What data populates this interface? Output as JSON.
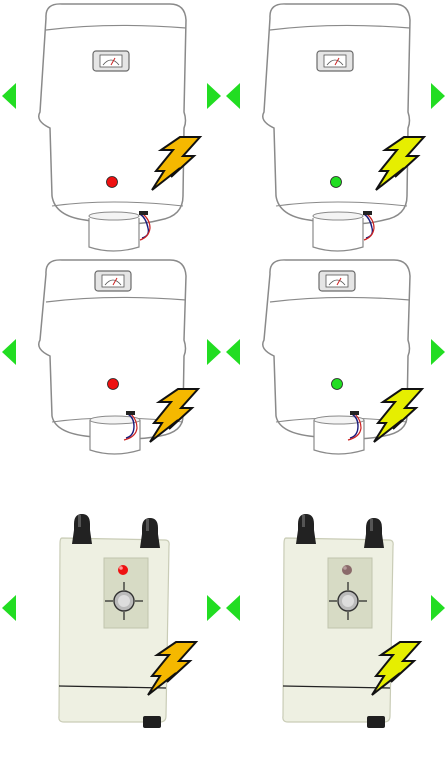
{
  "colors": {
    "background": "#ffffff",
    "arrow_green": "#22dd22",
    "indicator_off": "#ee1111",
    "indicator_on": "#22dd22",
    "bolt_orange": "#f5b800",
    "bolt_yellow": "#e6ee00",
    "heater_outline": "#8a8a8a",
    "device_body": "#eef0e2"
  },
  "sprites": [
    {
      "name": "boiler-1",
      "kind": "boiler",
      "indicator": "off",
      "bolt": "orange"
    },
    {
      "name": "boiler-2",
      "kind": "boiler",
      "indicator": "on",
      "bolt": "yellow"
    },
    {
      "name": "boiler-3",
      "kind": "boiler",
      "indicator": "off",
      "bolt": "orange"
    },
    {
      "name": "boiler-4",
      "kind": "boiler",
      "indicator": "on",
      "bolt": "yellow"
    },
    {
      "name": "switch-box-1",
      "kind": "switchbox",
      "indicator": "red-lit",
      "bolt": "orange"
    },
    {
      "name": "switch-box-2",
      "kind": "switchbox",
      "indicator": "dim",
      "bolt": "yellow"
    }
  ],
  "icons": [
    "left-arrow-icon",
    "right-arrow-icon",
    "lightning-bolt-icon",
    "gauge-icon",
    "power-knob-icon"
  ]
}
